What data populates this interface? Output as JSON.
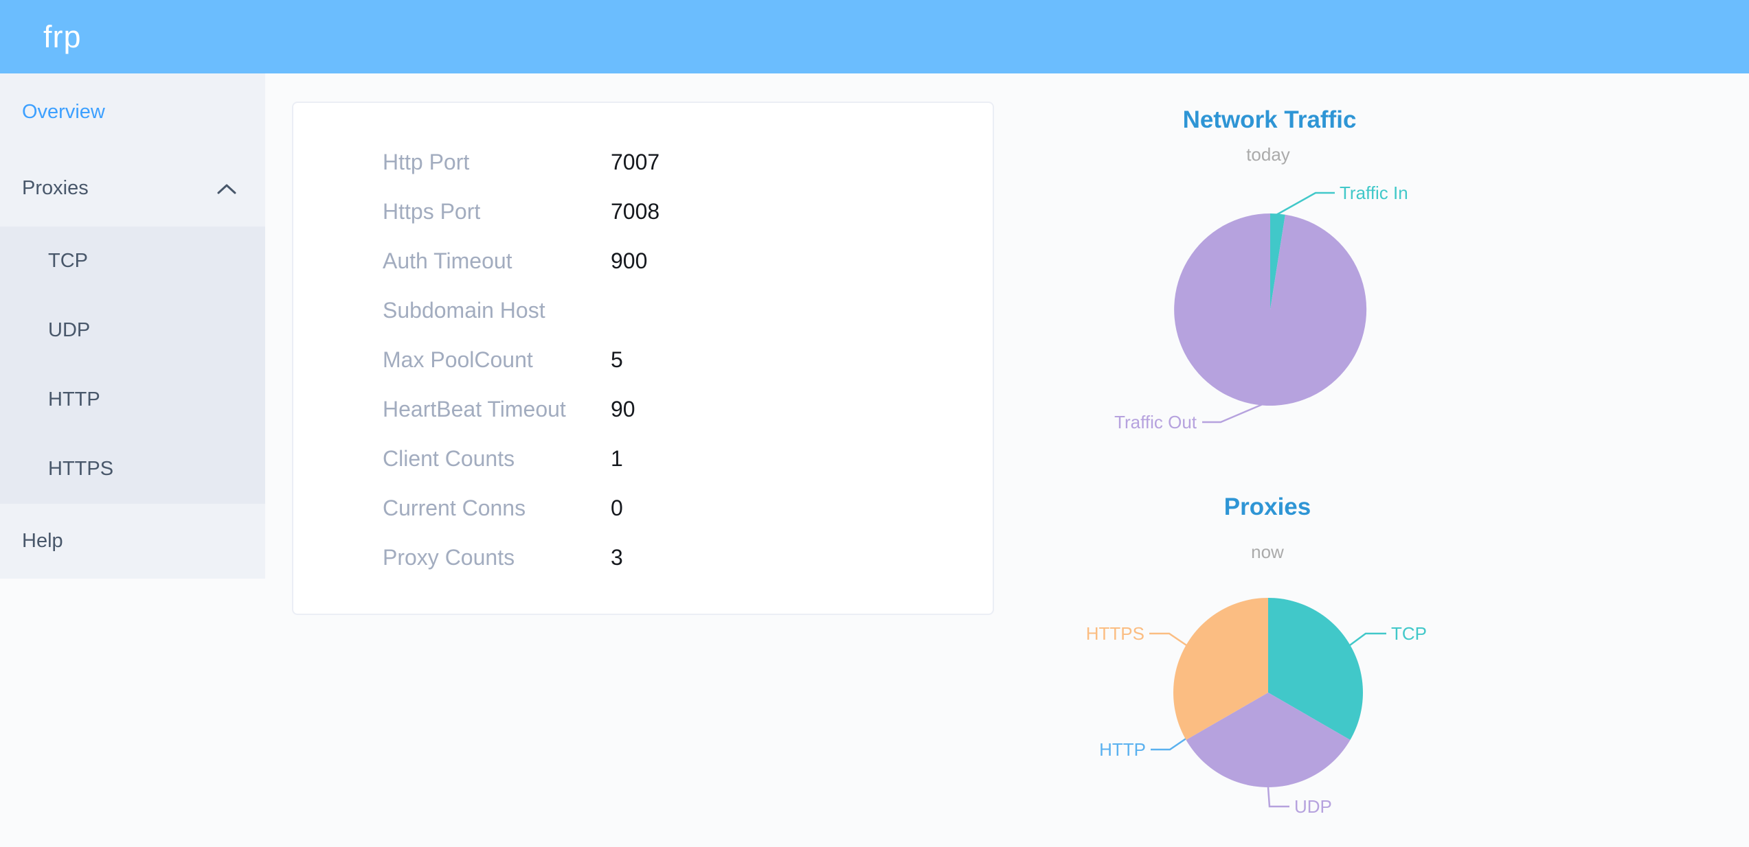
{
  "header": {
    "logo": "frp",
    "bg_color": "#6bbdfe"
  },
  "sidebar": {
    "items": [
      {
        "label": "Overview",
        "active": true
      },
      {
        "label": "Proxies",
        "expanded": true
      },
      {
        "label": "Help"
      }
    ],
    "proxies_children": [
      "TCP",
      "UDP",
      "HTTP",
      "HTTPS"
    ],
    "active_item": "Overview"
  },
  "overview_card": {
    "rows": [
      {
        "label": "Http Port",
        "value": "7007"
      },
      {
        "label": "Https Port",
        "value": "7008"
      },
      {
        "label": "Auth Timeout",
        "value": "900"
      },
      {
        "label": "Subdomain Host",
        "value": ""
      },
      {
        "label": "Max PoolCount",
        "value": "5"
      },
      {
        "label": "HeartBeat Timeout",
        "value": "90"
      },
      {
        "label": "Client Counts",
        "value": "1"
      },
      {
        "label": "Current Conns",
        "value": "0"
      },
      {
        "label": "Proxy Counts",
        "value": "3"
      }
    ]
  },
  "chart_data": [
    {
      "type": "pie",
      "title": "Network Traffic",
      "subtitle": "today",
      "legend_position": "callout-labels",
      "slices": [
        {
          "name": "Traffic In",
          "percent": 2.5,
          "color": "#41c8c9"
        },
        {
          "name": "Traffic Out",
          "percent": 97.5,
          "color": "#b6a2de"
        }
      ]
    },
    {
      "type": "pie",
      "title": "Proxies",
      "subtitle": "now",
      "legend_position": "callout-labels",
      "slices": [
        {
          "name": "TCP",
          "value": 1,
          "color": "#41c8c9"
        },
        {
          "name": "UDP",
          "value": 1,
          "color": "#b6a2de"
        },
        {
          "name": "HTTP",
          "value": 0,
          "color": "#5ab1ef"
        },
        {
          "name": "HTTPS",
          "value": 1,
          "color": "#fbbd82"
        }
      ]
    }
  ],
  "colors": {
    "header_bg": "#6bbdfe",
    "chart_title": "#2e95d5",
    "chart_subtitle": "#aaaaaa",
    "sidebar_active": "#3da0ff",
    "sidebar_text": "#48576a",
    "card_label": "#a2acbf",
    "card_value": "#15181d"
  }
}
